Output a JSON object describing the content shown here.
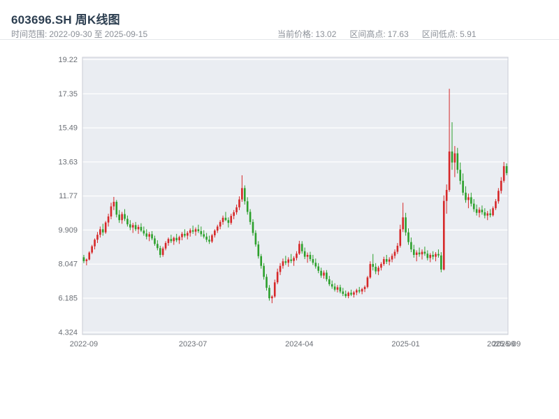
{
  "header": {
    "title": "603696.SH 周K线图",
    "time_range": {
      "label": "时间范围:",
      "start": "2022-09-30",
      "separator": "至",
      "end": "2025-09-15"
    },
    "stats": [
      {
        "label": "当前价格:",
        "value": "13.02"
      },
      {
        "label": "区间高点:",
        "value": "17.63"
      },
      {
        "label": "区间低点:",
        "value": "5.91"
      }
    ]
  },
  "chart_data": {
    "type": "candlestick",
    "symbol": "603696.SH",
    "title": "603696.SH 周K线图",
    "frequency": "weekly",
    "current_price": 13.02,
    "range_high": 17.63,
    "range_low": 5.91,
    "ylim": [
      4.2,
      19.35
    ],
    "y_ticks": [
      "4.324",
      "6.185",
      "8.047",
      "9.909",
      "11.77",
      "13.63",
      "15.49",
      "17.35",
      "19.22"
    ],
    "x_ticks": [
      {
        "label": "2022-09",
        "index": 0
      },
      {
        "label": "2023-07",
        "index": 40
      },
      {
        "label": "2024-04",
        "index": 79
      },
      {
        "label": "2025-01",
        "index": 118
      },
      {
        "label": "2025-09",
        "index": 153
      },
      {
        "label": "2025-09",
        "index": 155
      }
    ],
    "colors": {
      "up": "#d62728",
      "down": "#2ca02c",
      "plot_bg": "#eaedf2",
      "grid": "#ffffff",
      "border": "#c9ccd4"
    },
    "candle_format": [
      "date",
      "open",
      "high",
      "low",
      "close"
    ],
    "candles": [
      [
        "2022-09-30",
        8.42,
        8.55,
        8.1,
        8.21
      ],
      [
        "2022-10-07",
        8.21,
        8.35,
        7.98,
        8.3
      ],
      [
        "2022-10-14",
        8.3,
        8.75,
        8.25,
        8.68
      ],
      [
        "2022-10-21",
        8.68,
        9.1,
        8.6,
        9.02
      ],
      [
        "2022-10-28",
        9.02,
        9.45,
        8.85,
        9.38
      ],
      [
        "2022-11-04",
        9.38,
        9.8,
        9.2,
        9.65
      ],
      [
        "2022-11-11",
        9.65,
        10.1,
        9.5,
        9.95
      ],
      [
        "2022-11-18",
        9.95,
        10.25,
        9.6,
        9.78
      ],
      [
        "2022-11-25",
        9.78,
        10.4,
        9.7,
        10.32
      ],
      [
        "2022-12-02",
        10.32,
        10.8,
        10.1,
        10.65
      ],
      [
        "2022-12-09",
        10.65,
        11.4,
        10.5,
        11.2
      ],
      [
        "2022-12-16",
        11.2,
        11.72,
        11.0,
        11.45
      ],
      [
        "2022-12-23",
        11.45,
        11.55,
        10.6,
        10.75
      ],
      [
        "2022-12-30",
        10.75,
        11.0,
        10.3,
        10.45
      ],
      [
        "2023-01-06",
        10.45,
        10.9,
        10.25,
        10.78
      ],
      [
        "2023-01-13",
        10.78,
        11.05,
        10.4,
        10.52
      ],
      [
        "2023-01-20",
        10.52,
        10.7,
        10.1,
        10.22
      ],
      [
        "2023-01-27",
        10.22,
        10.45,
        9.9,
        10.05
      ],
      [
        "2023-02-03",
        10.05,
        10.3,
        9.75,
        10.18
      ],
      [
        "2023-02-10",
        10.18,
        10.35,
        9.85,
        9.95
      ],
      [
        "2023-02-17",
        9.95,
        10.2,
        9.7,
        10.08
      ],
      [
        "2023-02-24",
        10.08,
        10.28,
        9.8,
        9.88
      ],
      [
        "2023-03-03",
        9.88,
        10.1,
        9.6,
        9.72
      ],
      [
        "2023-03-10",
        9.72,
        9.95,
        9.4,
        9.55
      ],
      [
        "2023-03-17",
        9.55,
        9.8,
        9.3,
        9.68
      ],
      [
        "2023-03-24",
        9.68,
        9.85,
        9.35,
        9.45
      ],
      [
        "2023-03-31",
        9.45,
        9.6,
        9.05,
        9.15
      ],
      [
        "2023-04-07",
        9.15,
        9.35,
        8.8,
        8.92
      ],
      [
        "2023-04-14",
        8.92,
        9.05,
        8.4,
        8.55
      ],
      [
        "2023-04-21",
        8.55,
        9.0,
        8.45,
        8.9
      ],
      [
        "2023-04-28",
        8.9,
        9.3,
        8.8,
        9.2
      ],
      [
        "2023-05-05",
        9.2,
        9.5,
        9.05,
        9.42
      ],
      [
        "2023-05-12",
        9.42,
        9.65,
        9.2,
        9.3
      ],
      [
        "2023-05-19",
        9.3,
        9.55,
        9.1,
        9.48
      ],
      [
        "2023-05-26",
        9.48,
        9.7,
        9.25,
        9.35
      ],
      [
        "2023-06-02",
        9.35,
        9.6,
        9.15,
        9.52
      ],
      [
        "2023-06-09",
        9.52,
        9.8,
        9.35,
        9.7
      ],
      [
        "2023-06-16",
        9.7,
        9.95,
        9.5,
        9.6
      ],
      [
        "2023-06-23",
        9.6,
        9.85,
        9.4,
        9.75
      ],
      [
        "2023-06-30",
        9.75,
        10.0,
        9.55,
        9.9
      ],
      [
        "2023-07-07",
        9.9,
        10.15,
        9.7,
        9.82
      ],
      [
        "2023-07-14",
        9.82,
        10.05,
        9.6,
        9.95
      ],
      [
        "2023-07-21",
        9.95,
        10.2,
        9.75,
        9.85
      ],
      [
        "2023-07-28",
        9.85,
        10.1,
        9.55,
        9.68
      ],
      [
        "2023-08-04",
        9.68,
        9.9,
        9.45,
        9.55
      ],
      [
        "2023-08-11",
        9.55,
        9.75,
        9.25,
        9.38
      ],
      [
        "2023-08-18",
        9.38,
        9.6,
        9.15,
        9.28
      ],
      [
        "2023-08-25",
        9.28,
        9.7,
        9.2,
        9.62
      ],
      [
        "2023-09-01",
        9.62,
        9.95,
        9.5,
        9.88
      ],
      [
        "2023-09-08",
        9.88,
        10.2,
        9.75,
        10.1
      ],
      [
        "2023-09-15",
        10.1,
        10.45,
        9.95,
        10.35
      ],
      [
        "2023-09-22",
        10.35,
        10.7,
        10.2,
        10.58
      ],
      [
        "2023-09-29",
        10.58,
        10.9,
        10.4,
        10.45
      ],
      [
        "2023-10-06",
        10.45,
        10.6,
        10.05,
        10.3
      ],
      [
        "2023-10-13",
        10.3,
        10.8,
        10.2,
        10.68
      ],
      [
        "2023-10-20",
        10.68,
        11.0,
        10.5,
        10.88
      ],
      [
        "2023-10-27",
        10.88,
        11.3,
        10.75,
        11.15
      ],
      [
        "2023-11-03",
        11.15,
        11.75,
        11.0,
        11.58
      ],
      [
        "2023-11-10",
        11.58,
        12.9,
        11.45,
        12.2
      ],
      [
        "2023-11-17",
        12.2,
        12.35,
        11.3,
        11.48
      ],
      [
        "2023-11-24",
        11.48,
        11.7,
        10.75,
        10.9
      ],
      [
        "2023-12-01",
        10.9,
        11.05,
        10.2,
        10.35
      ],
      [
        "2023-12-08",
        10.35,
        10.5,
        9.6,
        9.75
      ],
      [
        "2023-12-15",
        9.75,
        9.9,
        9.0,
        9.12
      ],
      [
        "2023-12-22",
        9.12,
        9.3,
        8.35,
        8.48
      ],
      [
        "2023-12-29",
        8.48,
        8.6,
        7.8,
        7.95
      ],
      [
        "2024-01-05",
        7.95,
        8.1,
        7.2,
        7.35
      ],
      [
        "2024-01-12",
        7.35,
        7.5,
        6.6,
        6.75
      ],
      [
        "2024-01-19",
        6.75,
        6.9,
        6.05,
        6.18
      ],
      [
        "2024-01-26",
        6.18,
        6.35,
        5.91,
        6.28
      ],
      [
        "2024-02-02",
        6.28,
        7.2,
        6.2,
        7.05
      ],
      [
        "2024-02-09",
        7.05,
        7.8,
        6.95,
        7.62
      ],
      [
        "2024-02-16",
        7.62,
        8.1,
        7.45,
        7.95
      ],
      [
        "2024-02-23",
        7.95,
        8.35,
        7.8,
        8.2
      ],
      [
        "2024-03-01",
        8.2,
        8.5,
        8.0,
        8.12
      ],
      [
        "2024-03-08",
        8.12,
        8.42,
        7.9,
        8.3
      ],
      [
        "2024-03-15",
        8.3,
        8.6,
        8.1,
        8.22
      ],
      [
        "2024-03-22",
        8.22,
        8.48,
        7.95,
        8.38
      ],
      [
        "2024-03-29",
        8.38,
        8.75,
        8.25,
        8.62
      ],
      [
        "2024-04-05",
        8.62,
        9.32,
        8.55,
        9.15
      ],
      [
        "2024-04-12",
        9.15,
        9.3,
        8.62,
        8.75
      ],
      [
        "2024-04-19",
        8.75,
        8.95,
        8.32,
        8.45
      ],
      [
        "2024-04-26",
        8.45,
        8.68,
        8.12,
        8.55
      ],
      [
        "2024-05-03",
        8.55,
        8.72,
        8.2,
        8.32
      ],
      [
        "2024-05-10",
        8.32,
        8.55,
        8.0,
        8.12
      ],
      [
        "2024-05-17",
        8.12,
        8.35,
        7.8,
        7.92
      ],
      [
        "2024-05-24",
        7.92,
        8.1,
        7.55,
        7.68
      ],
      [
        "2024-05-31",
        7.68,
        7.85,
        7.3,
        7.42
      ],
      [
        "2024-06-07",
        7.42,
        7.7,
        7.25,
        7.58
      ],
      [
        "2024-06-14",
        7.58,
        7.72,
        7.1,
        7.22
      ],
      [
        "2024-06-21",
        7.22,
        7.4,
        6.85,
        6.95
      ],
      [
        "2024-06-28",
        6.95,
        7.15,
        6.7,
        6.82
      ],
      [
        "2024-07-05",
        6.82,
        7.0,
        6.55,
        6.65
      ],
      [
        "2024-07-12",
        6.65,
        6.9,
        6.5,
        6.78
      ],
      [
        "2024-07-19",
        6.78,
        6.92,
        6.45,
        6.55
      ],
      [
        "2024-07-26",
        6.55,
        6.75,
        6.3,
        6.42
      ],
      [
        "2024-08-02",
        6.42,
        6.6,
        6.2,
        6.3
      ],
      [
        "2024-08-09",
        6.3,
        6.55,
        6.18,
        6.48
      ],
      [
        "2024-08-16",
        6.48,
        6.65,
        6.3,
        6.38
      ],
      [
        "2024-08-23",
        6.38,
        6.58,
        6.22,
        6.5
      ],
      [
        "2024-08-30",
        6.5,
        6.7,
        6.35,
        6.62
      ],
      [
        "2024-09-06",
        6.62,
        6.8,
        6.45,
        6.55
      ],
      [
        "2024-09-13",
        6.55,
        6.75,
        6.4,
        6.68
      ],
      [
        "2024-09-20",
        6.68,
        6.88,
        6.52,
        6.8
      ],
      [
        "2024-09-27",
        6.8,
        7.4,
        6.72,
        7.32
      ],
      [
        "2024-10-04",
        7.32,
        8.2,
        7.25,
        8.05
      ],
      [
        "2024-10-11",
        8.05,
        8.6,
        7.7,
        7.9
      ],
      [
        "2024-10-18",
        7.9,
        8.1,
        7.5,
        7.65
      ],
      [
        "2024-10-25",
        7.65,
        7.95,
        7.45,
        7.85
      ],
      [
        "2024-11-01",
        7.85,
        8.15,
        7.7,
        8.05
      ],
      [
        "2024-11-08",
        8.05,
        8.45,
        7.95,
        8.32
      ],
      [
        "2024-11-15",
        8.32,
        8.55,
        8.05,
        8.18
      ],
      [
        "2024-11-22",
        8.18,
        8.42,
        7.98,
        8.3
      ],
      [
        "2024-11-29",
        8.3,
        8.62,
        8.15,
        8.5
      ],
      [
        "2024-12-06",
        8.5,
        8.85,
        8.35,
        8.72
      ],
      [
        "2024-12-13",
        8.72,
        9.2,
        8.6,
        9.05
      ],
      [
        "2024-12-20",
        9.05,
        10.2,
        8.95,
        9.95
      ],
      [
        "2024-12-27",
        9.95,
        11.4,
        9.8,
        10.6
      ],
      [
        "2025-01-03",
        10.6,
        10.85,
        9.6,
        9.78
      ],
      [
        "2025-01-10",
        9.78,
        10.0,
        9.1,
        9.25
      ],
      [
        "2025-01-17",
        9.25,
        9.5,
        8.7,
        8.85
      ],
      [
        "2025-01-24",
        8.85,
        9.1,
        8.4,
        8.55
      ],
      [
        "2025-01-31",
        8.55,
        8.8,
        8.2,
        8.68
      ],
      [
        "2025-02-07",
        8.68,
        8.95,
        8.45,
        8.58
      ],
      [
        "2025-02-14",
        8.58,
        8.85,
        8.3,
        8.72
      ],
      [
        "2025-02-21",
        8.72,
        9.0,
        8.5,
        8.62
      ],
      [
        "2025-02-28",
        8.62,
        8.8,
        8.25,
        8.38
      ],
      [
        "2025-03-07",
        8.38,
        8.65,
        8.15,
        8.55
      ],
      [
        "2025-03-14",
        8.55,
        8.75,
        8.3,
        8.45
      ],
      [
        "2025-03-21",
        8.45,
        8.7,
        8.2,
        8.6
      ],
      [
        "2025-03-28",
        8.6,
        8.85,
        8.4,
        8.52
      ],
      [
        "2025-04-04",
        8.52,
        8.7,
        7.6,
        7.75
      ],
      [
        "2025-04-11",
        7.75,
        11.8,
        7.7,
        11.5
      ],
      [
        "2025-04-18",
        11.5,
        12.4,
        10.8,
        12.1
      ],
      [
        "2025-04-25",
        12.1,
        17.63,
        12.0,
        14.2
      ],
      [
        "2025-05-02",
        14.2,
        15.8,
        13.2,
        13.6
      ],
      [
        "2025-05-09",
        13.6,
        14.5,
        12.8,
        14.1
      ],
      [
        "2025-05-16",
        14.1,
        14.4,
        13.0,
        13.2
      ],
      [
        "2025-05-23",
        13.2,
        13.6,
        12.4,
        12.6
      ],
      [
        "2025-05-30",
        12.6,
        13.0,
        11.8,
        11.95
      ],
      [
        "2025-06-06",
        11.95,
        12.3,
        11.4,
        11.55
      ],
      [
        "2025-06-13",
        11.55,
        11.9,
        11.1,
        11.7
      ],
      [
        "2025-06-20",
        11.7,
        11.95,
        11.2,
        11.35
      ],
      [
        "2025-06-27",
        11.35,
        11.6,
        10.9,
        11.05
      ],
      [
        "2025-07-04",
        11.05,
        11.3,
        10.7,
        10.85
      ],
      [
        "2025-07-11",
        10.85,
        11.15,
        10.6,
        11.02
      ],
      [
        "2025-07-18",
        11.02,
        11.25,
        10.75,
        10.88
      ],
      [
        "2025-07-25",
        10.88,
        11.1,
        10.55,
        10.7
      ],
      [
        "2025-08-01",
        10.7,
        10.95,
        10.45,
        10.82
      ],
      [
        "2025-08-08",
        10.82,
        11.05,
        10.6,
        10.72
      ],
      [
        "2025-08-15",
        10.72,
        11.2,
        10.65,
        11.1
      ],
      [
        "2025-08-22",
        11.1,
        11.6,
        11.0,
        11.48
      ],
      [
        "2025-08-29",
        11.48,
        12.2,
        11.35,
        12.05
      ],
      [
        "2025-09-05",
        12.05,
        12.8,
        11.9,
        12.6
      ],
      [
        "2025-09-12",
        12.6,
        13.63,
        12.5,
        13.4
      ],
      [
        "2025-09-15",
        13.4,
        13.55,
        12.9,
        13.02
      ]
    ]
  }
}
